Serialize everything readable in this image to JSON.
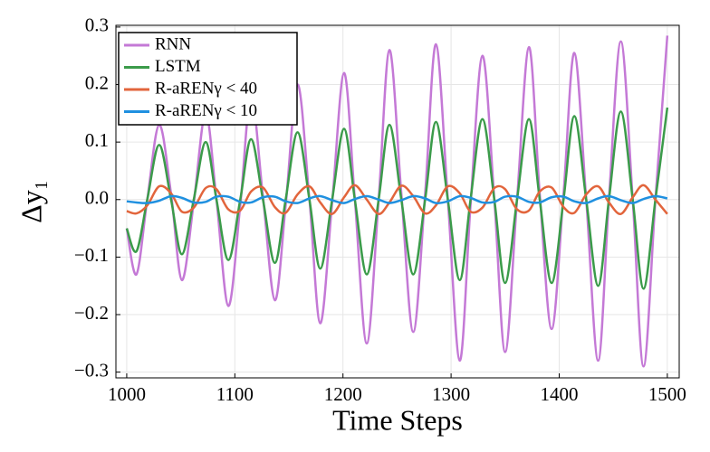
{
  "chart_data": {
    "type": "line",
    "xlabel": "Time Steps",
    "ylabel": "Δy₁",
    "x": [
      1000,
      1009,
      1019,
      1030,
      1041,
      1051,
      1062,
      1073,
      1083,
      1094,
      1105,
      1115,
      1126,
      1137,
      1147,
      1158,
      1169,
      1179,
      1190,
      1201,
      1211,
      1222,
      1233,
      1243,
      1254,
      1265,
      1276,
      1286,
      1297,
      1308,
      1318,
      1329,
      1340,
      1350,
      1361,
      1372,
      1382,
      1393,
      1404,
      1414,
      1425,
      1436,
      1446,
      1457,
      1468,
      1478,
      1489,
      1500
    ],
    "series": [
      {
        "name": "RNN",
        "color": "#c479d6",
        "values": [
          -0.05,
          -0.13,
          0,
          0.13,
          0.01,
          -0.14,
          -0.005,
          0.15,
          0,
          -0.185,
          -0.01,
          0.18,
          0.005,
          -0.175,
          -0.01,
          0.2,
          0,
          -0.215,
          -0.005,
          0.22,
          0,
          -0.25,
          0,
          0.26,
          0.01,
          -0.23,
          0.01,
          0.27,
          0,
          -0.28,
          -0.01,
          0.25,
          0,
          -0.265,
          0,
          0.265,
          0.01,
          -0.225,
          0.01,
          0.255,
          0,
          -0.28,
          0,
          0.275,
          0,
          -0.29,
          0,
          0.285
        ]
      },
      {
        "name": "LSTM",
        "color": "#3b9b4a",
        "values": [
          -0.05,
          -0.09,
          0,
          0.095,
          0,
          -0.095,
          0,
          0.1,
          0,
          -0.105,
          0,
          0.105,
          0,
          -0.11,
          0,
          0.117,
          0,
          -0.12,
          0,
          0.123,
          0,
          -0.13,
          0,
          0.13,
          0,
          -0.13,
          0,
          0.135,
          0,
          -0.14,
          0,
          0.14,
          0,
          -0.145,
          0,
          0.14,
          0,
          -0.145,
          0,
          0.145,
          0,
          -0.15,
          0,
          0.153,
          0,
          -0.155,
          0,
          0.16
        ]
      },
      {
        "name": "R-aRENγ < 40",
        "color": "#e2653c",
        "values": [
          -0.02,
          -0.024,
          -0.01,
          0.023,
          0.011,
          -0.021,
          -0.014,
          0.02,
          0.018,
          -0.017,
          -0.019,
          0.014,
          0.021,
          -0.013,
          -0.023,
          0.009,
          0.023,
          -0.005,
          -0.025,
          0.004,
          0.025,
          0,
          -0.025,
          -0.005,
          0.024,
          0.006,
          -0.024,
          -0.01,
          0.023,
          0.011,
          -0.021,
          -0.014,
          0.02,
          0.018,
          -0.017,
          -0.019,
          0.014,
          0.021,
          -0.013,
          -0.023,
          0.009,
          0.023,
          -0.005,
          -0.025,
          0.004,
          0.025,
          0,
          -0.025
        ]
      },
      {
        "name": "R-aRENγ < 10",
        "color": "#1f90e0",
        "values": [
          -0.003,
          -0.005,
          -0.006,
          -0.002,
          0.006,
          0.003,
          -0.005,
          -0.004,
          0.005,
          0.005,
          -0.004,
          -0.005,
          0.004,
          0.005,
          -0.003,
          -0.006,
          0.002,
          0.006,
          -0.001,
          -0.006,
          0.001,
          0.006,
          0,
          -0.006,
          -0.001,
          0.006,
          0.002,
          -0.006,
          -0.003,
          0.006,
          0.003,
          -0.005,
          -0.004,
          0.005,
          0.005,
          -0.004,
          -0.005,
          0.004,
          0.005,
          -0.003,
          -0.006,
          0.002,
          0.006,
          -0.001,
          -0.006,
          0.001,
          0.006,
          0.002
        ]
      }
    ],
    "xlim": [
      990,
      1511
    ],
    "ylim": [
      -0.31,
      0.303
    ],
    "xticks": [
      1000,
      1100,
      1200,
      1300,
      1400,
      1500
    ],
    "yticks": [
      {
        "value": -0.3,
        "label": "−0.3"
      },
      {
        "value": -0.2,
        "label": "−0.2"
      },
      {
        "value": -0.1,
        "label": "−0.1"
      },
      {
        "value": 0,
        "label": "0.0"
      },
      0.1,
      0.2,
      0.3
    ],
    "grid": true,
    "legend": "upper left"
  }
}
